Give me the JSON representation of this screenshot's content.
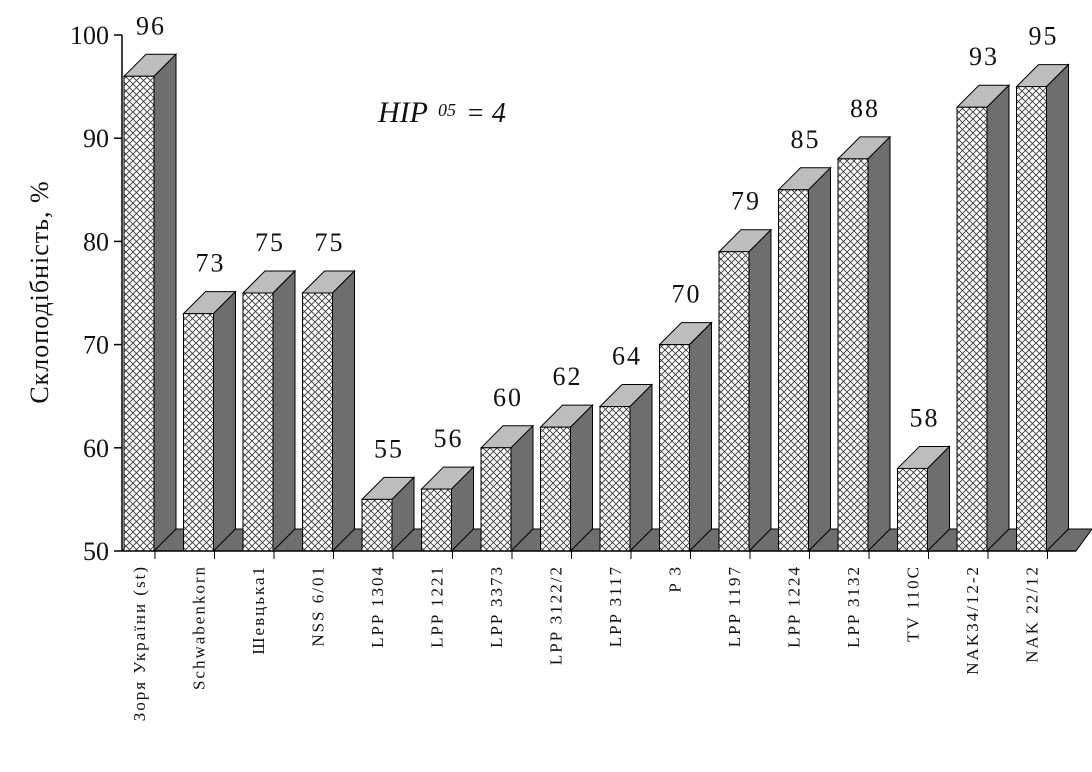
{
  "chart_data": {
    "type": "bar",
    "title": "",
    "xlabel": "",
    "ylabel": "Склоподібність, %",
    "ylim": [
      50,
      100
    ],
    "yticks": [
      50,
      60,
      70,
      80,
      90,
      100
    ],
    "grid": false,
    "legend": "none",
    "style": "3d-hatched",
    "annotation": {
      "main": "HIP",
      "sub": "05",
      "rest": "= 4"
    },
    "categories": [
      "Зоря України (st)",
      "Schwabenkorn",
      "Шевцька1",
      "NSS 6/01",
      "LPP 1304",
      "LPP 1221",
      "LPP 3373",
      "LPP 3122/2",
      "LPP 3117",
      "P 3",
      "LPP 1197",
      "LPP 1224",
      "LPP 3132",
      "TV 110C",
      "NAK34/12-2",
      "NAK 22/12"
    ],
    "values": [
      96,
      73,
      75,
      75,
      55,
      56,
      60,
      62,
      64,
      70,
      79,
      85,
      88,
      58,
      93,
      95
    ],
    "value_labels": [
      "96",
      "73",
      "75",
      "75",
      "55",
      "56",
      "60",
      "62",
      "64",
      "70",
      "79",
      "85",
      "88",
      "58",
      "93",
      "95"
    ]
  },
  "colors": {
    "bar_front": "#ffffff",
    "bar_hatch": "#333333",
    "bar_top": "#bdbdbd",
    "bar_side": "#6e6e6e",
    "floor": "#6e6e6e",
    "axis": "#000000"
  }
}
